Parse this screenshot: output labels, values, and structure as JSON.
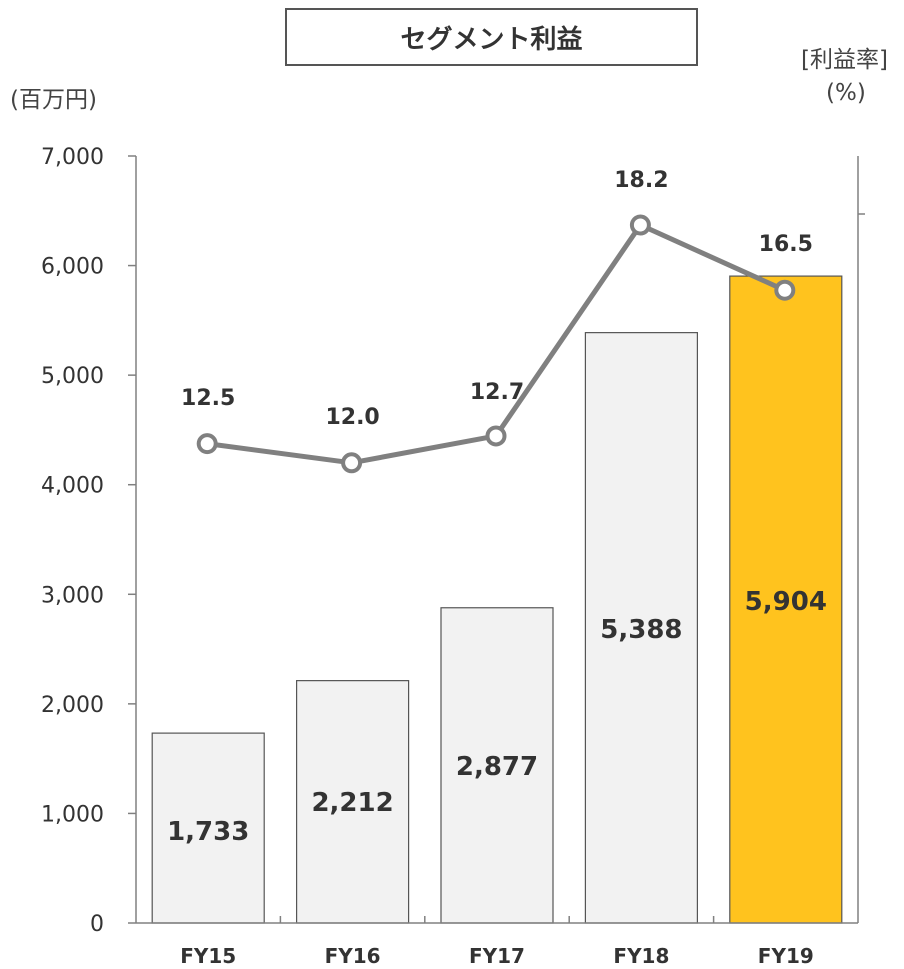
{
  "title": "セグメント利益",
  "left_unit": "(百万円)",
  "right_unit_top": "[利益率]",
  "right_unit_bottom": "(%)",
  "colors": {
    "bar": "#f2f2f2",
    "bar_highlight": "#ffc31e",
    "line": "#808080",
    "axis": "#808080"
  },
  "chart_data": {
    "type": "bar",
    "title": "セグメント利益",
    "categories": [
      "FY15",
      "FY16",
      "FY17",
      "FY18",
      "FY19"
    ],
    "series": [
      {
        "name": "",
        "type": "bar",
        "axis": "left",
        "values": [
          1733,
          2212,
          2877,
          5388,
          5904
        ],
        "value_labels": [
          "1,733",
          "2,212",
          "2,877",
          "5,388",
          "5,904"
        ],
        "highlight_index": 4
      },
      {
        "name": "",
        "type": "line",
        "axis": "right",
        "values": [
          12.5,
          12.0,
          12.7,
          18.2,
          16.5
        ],
        "value_labels": [
          "12.5",
          "12.0",
          "12.7",
          "18.2",
          "16.5"
        ]
      }
    ],
    "ylim_left": [
      0,
      7000
    ],
    "yticks_left": [
      "0",
      "1,000",
      "2,000",
      "3,000",
      "4,000",
      "5,000",
      "6,000",
      "7,000"
    ],
    "ytick_values_left": [
      0,
      1000,
      2000,
      3000,
      4000,
      5000,
      6000,
      7000
    ],
    "ylim_right": [
      0,
      20
    ],
    "grid": false,
    "legend": "none"
  }
}
